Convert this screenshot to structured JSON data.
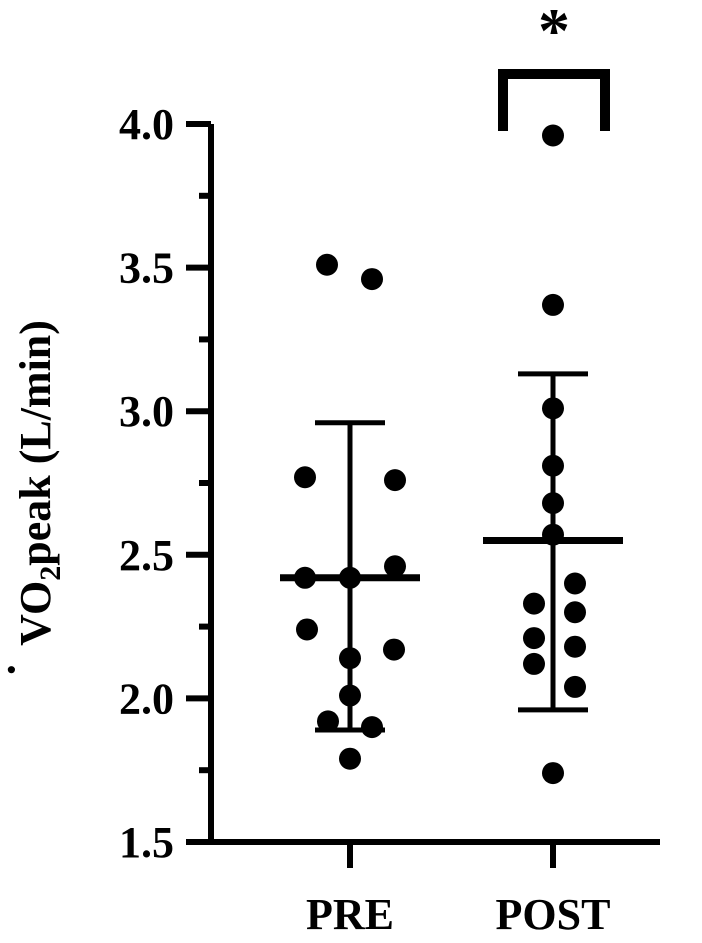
{
  "chart_data": {
    "type": "scatter",
    "ylabel_main": "VO",
    "ylabel_sub": "2",
    "ylabel_rest": "peak (L/min)",
    "ylim": [
      1.5,
      4.0
    ],
    "yticks": [
      "1.5",
      "2.0",
      "2.5",
      "3.0",
      "3.5",
      "4.0"
    ],
    "categories": [
      "PRE",
      "POST"
    ],
    "series": [
      {
        "category": "PRE",
        "mean": 2.42,
        "sd_upper": 2.96,
        "sd_lower": 1.89,
        "values": [
          3.51,
          3.46,
          2.76,
          2.77,
          2.42,
          2.42,
          2.46,
          2.24,
          2.17,
          2.14,
          2.01,
          1.92,
          1.9,
          1.79
        ]
      },
      {
        "category": "POST",
        "mean": 2.55,
        "sd_upper": 3.13,
        "sd_lower": 1.96,
        "values": [
          3.96,
          3.37,
          3.01,
          2.81,
          2.68,
          2.57,
          2.4,
          2.33,
          2.3,
          2.21,
          2.18,
          2.12,
          2.04,
          1.74
        ]
      }
    ],
    "significance_marker": "*",
    "grid": false,
    "legend": "none"
  }
}
